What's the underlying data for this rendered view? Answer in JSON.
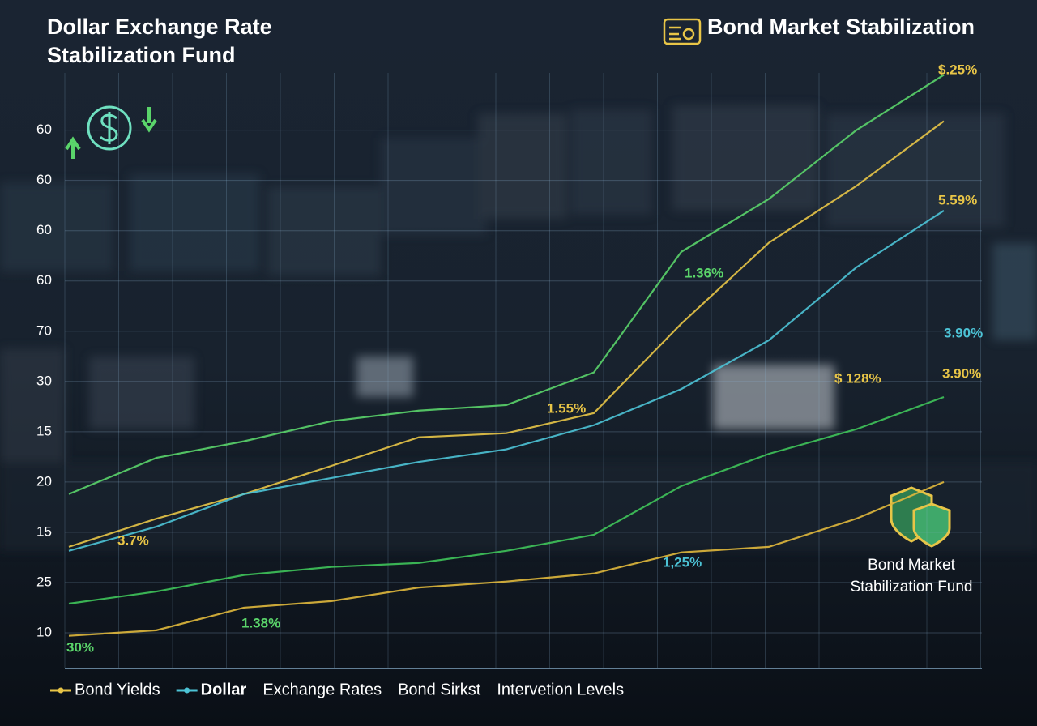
{
  "chart_data": {
    "type": "line",
    "title": "Dollar Exchange Rate Stabilization Fund",
    "header_right": "Bond Market Stabilization",
    "side_label": "Bond Market Stabilization Fund",
    "categories": [
      null,
      null,
      null,
      null,
      null,
      null,
      null,
      null,
      null,
      null,
      null
    ],
    "ylim": [
      -0.71,
      11.3
    ],
    "yticks": [
      {
        "value": 0,
        "label": "10"
      },
      {
        "value": 1,
        "label": "25"
      },
      {
        "value": 2,
        "label": "15"
      },
      {
        "value": 3,
        "label": "20"
      },
      {
        "value": 4,
        "label": "15"
      },
      {
        "value": 5,
        "label": "30"
      },
      {
        "value": 6,
        "label": "70"
      },
      {
        "value": 7,
        "label": "60"
      },
      {
        "value": 8,
        "label": "60"
      },
      {
        "value": 9,
        "label": "60"
      },
      {
        "value": 10,
        "label": "60"
      }
    ],
    "grid": true,
    "series": [
      {
        "name": "Bond Yields",
        "color": "#e8c547",
        "legend_marker": true,
        "values": [
          1.71,
          2.27,
          2.76,
          3.32,
          3.89,
          3.97,
          4.37,
          6.15,
          7.76,
          8.89,
          10.18
        ]
      },
      {
        "name": "Dollar",
        "color": "#4cc3d6",
        "legend_marker": true,
        "values": [
          1.63,
          2.11,
          2.76,
          3.08,
          3.4,
          3.65,
          4.13,
          4.85,
          5.82,
          7.27,
          8.4
        ]
      },
      {
        "name": "Exchange Rates",
        "color": "#5ad46a",
        "legend_marker": false,
        "values": [
          2.76,
          3.48,
          3.81,
          4.21,
          4.42,
          4.53,
          5.18,
          7.58,
          8.63,
          10.0,
          11.1
        ]
      },
      {
        "name": "Bond Sirkst",
        "color": "#3fc45a",
        "legend_marker": false,
        "values": [
          0.58,
          0.82,
          1.15,
          1.31,
          1.39,
          1.63,
          1.95,
          2.92,
          3.56,
          4.05,
          4.69
        ]
      },
      {
        "name": "Intervetion Levels",
        "color": "#e0b83c",
        "legend_marker": false,
        "values": [
          -0.06,
          0.05,
          0.5,
          0.63,
          0.9,
          1.02,
          1.18,
          1.6,
          1.71,
          2.27,
          3.0
        ]
      }
    ],
    "annotations": [
      {
        "text": "3.7%",
        "color": "#e8c547"
      },
      {
        "text": "1.38%",
        "color": "#5ad46a"
      },
      {
        "text": "30%",
        "color": "#5ad46a"
      },
      {
        "text": "1.55%",
        "color": "#e8c547"
      },
      {
        "text": "1.36%",
        "color": "#5ad46a"
      },
      {
        "text": "1,25%",
        "color": "#4cc3d6"
      },
      {
        "text": "$.25%",
        "color": "#e8c547"
      },
      {
        "text": "5.59%",
        "color": "#e8c547"
      },
      {
        "text": "3.90%",
        "color": "#4cc3d6"
      },
      {
        "text": "3.90%",
        "color": "#e8c547"
      },
      {
        "text": "$ 128%",
        "color": "#e8c547"
      }
    ]
  }
}
